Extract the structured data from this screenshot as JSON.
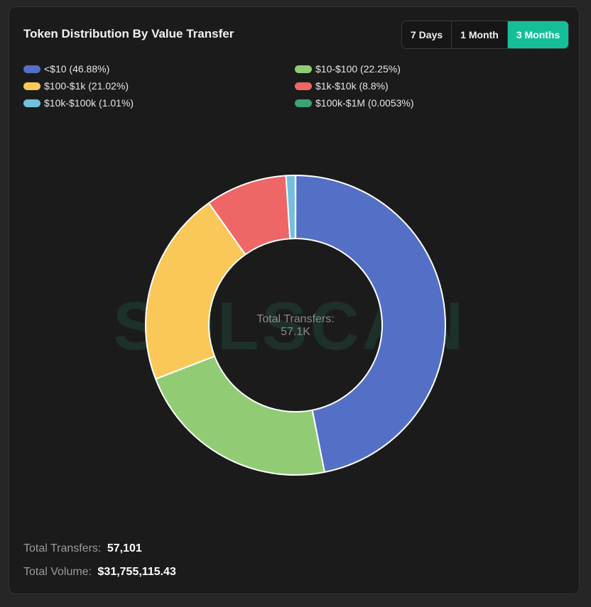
{
  "card": {
    "title": "Token Distribution By Value Transfer",
    "range_options": [
      {
        "label": "7 Days",
        "active": false
      },
      {
        "label": "1 Month",
        "active": false
      },
      {
        "label": "3 Months",
        "active": true
      }
    ],
    "watermark": "SOLSCAN"
  },
  "chart_data": {
    "type": "pie",
    "donut": true,
    "title": "Token Distribution By Value Transfer",
    "center_label": "Total Transfers:",
    "center_value": "57.1K",
    "legend_placement": "top",
    "slices": [
      {
        "label": "<$10",
        "legend": "<$10 (46.88%)",
        "value": 46.88,
        "color": "#5470c6"
      },
      {
        "label": "$10-$100",
        "legend": "$10-$100 (22.25%)",
        "value": 22.25,
        "color": "#91cc75"
      },
      {
        "label": "$100-$1k",
        "legend": "$100-$1k (21.02%)",
        "value": 21.02,
        "color": "#fac858"
      },
      {
        "label": "$1k-$10k",
        "legend": "$1k-$10k (8.8%)",
        "value": 8.8,
        "color": "#ee6666"
      },
      {
        "label": "$10k-$100k",
        "legend": "$10k-$100k (1.01%)",
        "value": 1.01,
        "color": "#73c0de"
      },
      {
        "label": "$100k-$1M",
        "legend": "$100k-$1M (0.0053%)",
        "value": 0.0053,
        "color": "#3ba272"
      }
    ]
  },
  "footer": {
    "transfers_label": "Total Transfers:",
    "transfers_value": "57,101",
    "volume_label": "Total Volume:",
    "volume_value": "$31,755,115.43"
  }
}
